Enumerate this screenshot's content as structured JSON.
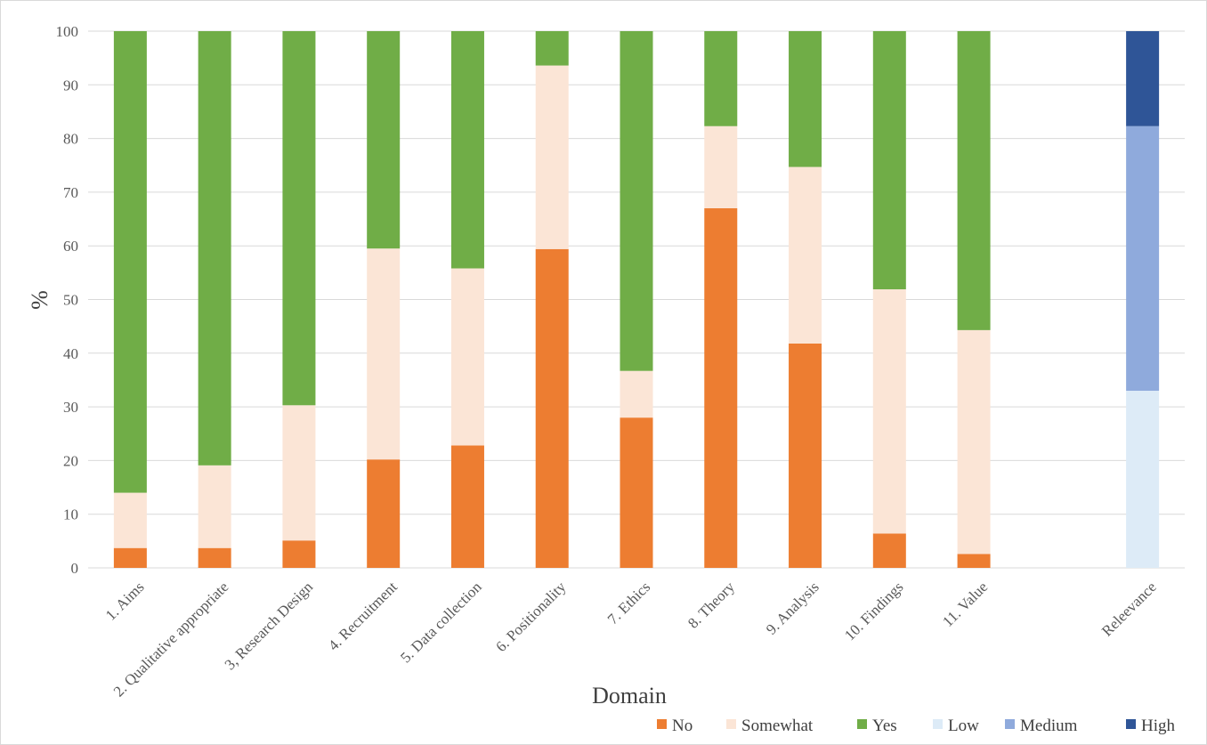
{
  "chart_data": {
    "type": "bar",
    "stacked": true,
    "xlabel": "Domain",
    "ylabel": "%",
    "ylim": [
      0,
      100
    ],
    "yticks": [
      0,
      10,
      20,
      30,
      40,
      50,
      60,
      70,
      80,
      90,
      100
    ],
    "grid": true,
    "legend_position": "bottom-right",
    "categories": [
      "1. Aims",
      "2. Qualitative appropriate",
      "3, Research Design",
      "4. Recruitment",
      "5. Data collection",
      "6. Positionality",
      "7. Ethics",
      "8. Theory",
      "9. Analysis",
      "10. Findings",
      "11. Value",
      "",
      "Releevance"
    ],
    "series": [
      {
        "name": "No",
        "color": "#ED7D31",
        "values": [
          3.7,
          3.7,
          5.1,
          20.2,
          22.8,
          59.4,
          28.0,
          67.0,
          41.8,
          6.4,
          2.6,
          null,
          null
        ]
      },
      {
        "name": "Somewhat",
        "color": "#FBE5D6",
        "values": [
          10.3,
          15.4,
          25.2,
          39.3,
          33.0,
          34.2,
          8.7,
          15.3,
          32.9,
          45.5,
          41.7,
          null,
          null
        ]
      },
      {
        "name": "Yes",
        "color": "#70AD47",
        "values": [
          86.0,
          80.9,
          69.7,
          40.5,
          44.2,
          6.4,
          63.3,
          17.7,
          25.3,
          48.1,
          55.7,
          null,
          null
        ]
      },
      {
        "name": "Low",
        "color": "#DDEBF7",
        "values": [
          null,
          null,
          null,
          null,
          null,
          null,
          null,
          null,
          null,
          null,
          null,
          null,
          33.0
        ]
      },
      {
        "name": "Medium",
        "color": "#8FAADC",
        "values": [
          null,
          null,
          null,
          null,
          null,
          null,
          null,
          null,
          null,
          null,
          null,
          null,
          49.3
        ]
      },
      {
        "name": "High",
        "color": "#2F5597",
        "values": [
          null,
          null,
          null,
          null,
          null,
          null,
          null,
          null,
          null,
          null,
          null,
          null,
          17.7
        ]
      }
    ]
  }
}
